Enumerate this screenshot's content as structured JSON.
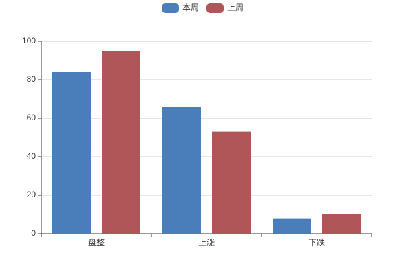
{
  "chart_data": {
    "type": "bar",
    "categories": [
      "盘整",
      "上涨",
      "下跌"
    ],
    "series": [
      {
        "name": "本周",
        "color": "#4a7ebb",
        "values": [
          84,
          66,
          8
        ]
      },
      {
        "name": "上周",
        "color": "#b05558",
        "values": [
          95,
          53,
          10
        ]
      }
    ],
    "ylim": [
      0,
      100
    ],
    "yticks": [
      0,
      20,
      40,
      60,
      80,
      100
    ],
    "grid": true,
    "legend": "top"
  }
}
